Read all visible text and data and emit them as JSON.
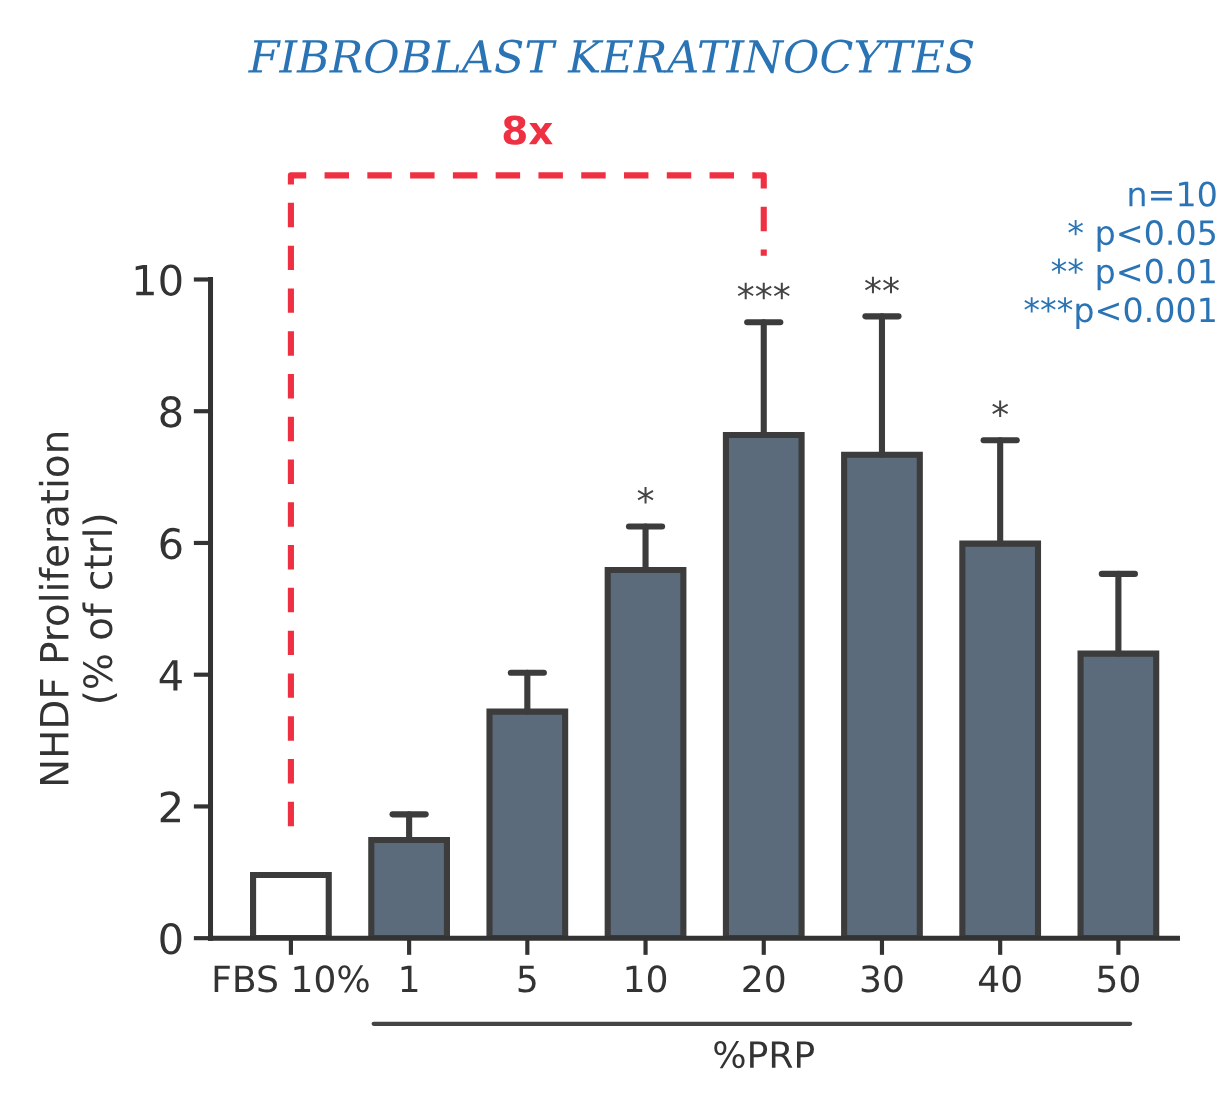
{
  "chart_data": {
    "type": "bar",
    "title": "FIBROBLAST KERATINOCYTES",
    "ylabel": "NHDF Proliferation\n(% of ctrl)",
    "xlabel": "%PRP",
    "categories": [
      "FBS 10%",
      "1",
      "5",
      "10",
      "20",
      "30",
      "40",
      "50"
    ],
    "values": [
      0.96,
      1.49,
      3.44,
      5.59,
      7.64,
      7.34,
      5.99,
      4.32
    ],
    "colors": [
      "#ffffff",
      "#5b6b7c",
      "#5b6b7c",
      "#5b6b7c",
      "#5b6b7c",
      "#5b6b7c",
      "#5b6b7c",
      "#5b6b7c"
    ],
    "errors": [
      null,
      [
        1.49,
        1.88
      ],
      [
        3.44,
        4.03
      ],
      [
        5.59,
        6.25
      ],
      [
        7.64,
        9.35
      ],
      [
        7.34,
        9.44
      ],
      [
        5.99,
        7.56
      ],
      [
        4.32,
        5.53
      ]
    ],
    "ylim": [
      0,
      10
    ],
    "yticks": [
      0,
      2,
      4,
      6,
      8,
      10
    ],
    "grid": false,
    "annotations": [
      "8x",
      "n=10\n* p<0.05\n** p<0.01\n***p<0.001",
      {
        "text": "*",
        "x": "10",
        "y": 6.25
      },
      {
        "text": "***",
        "x": "20",
        "y": 9.35
      },
      {
        "text": "**",
        "x": "30",
        "y": 9.44
      },
      {
        "text": "*",
        "x": "40",
        "y": 7.56
      }
    ]
  }
}
